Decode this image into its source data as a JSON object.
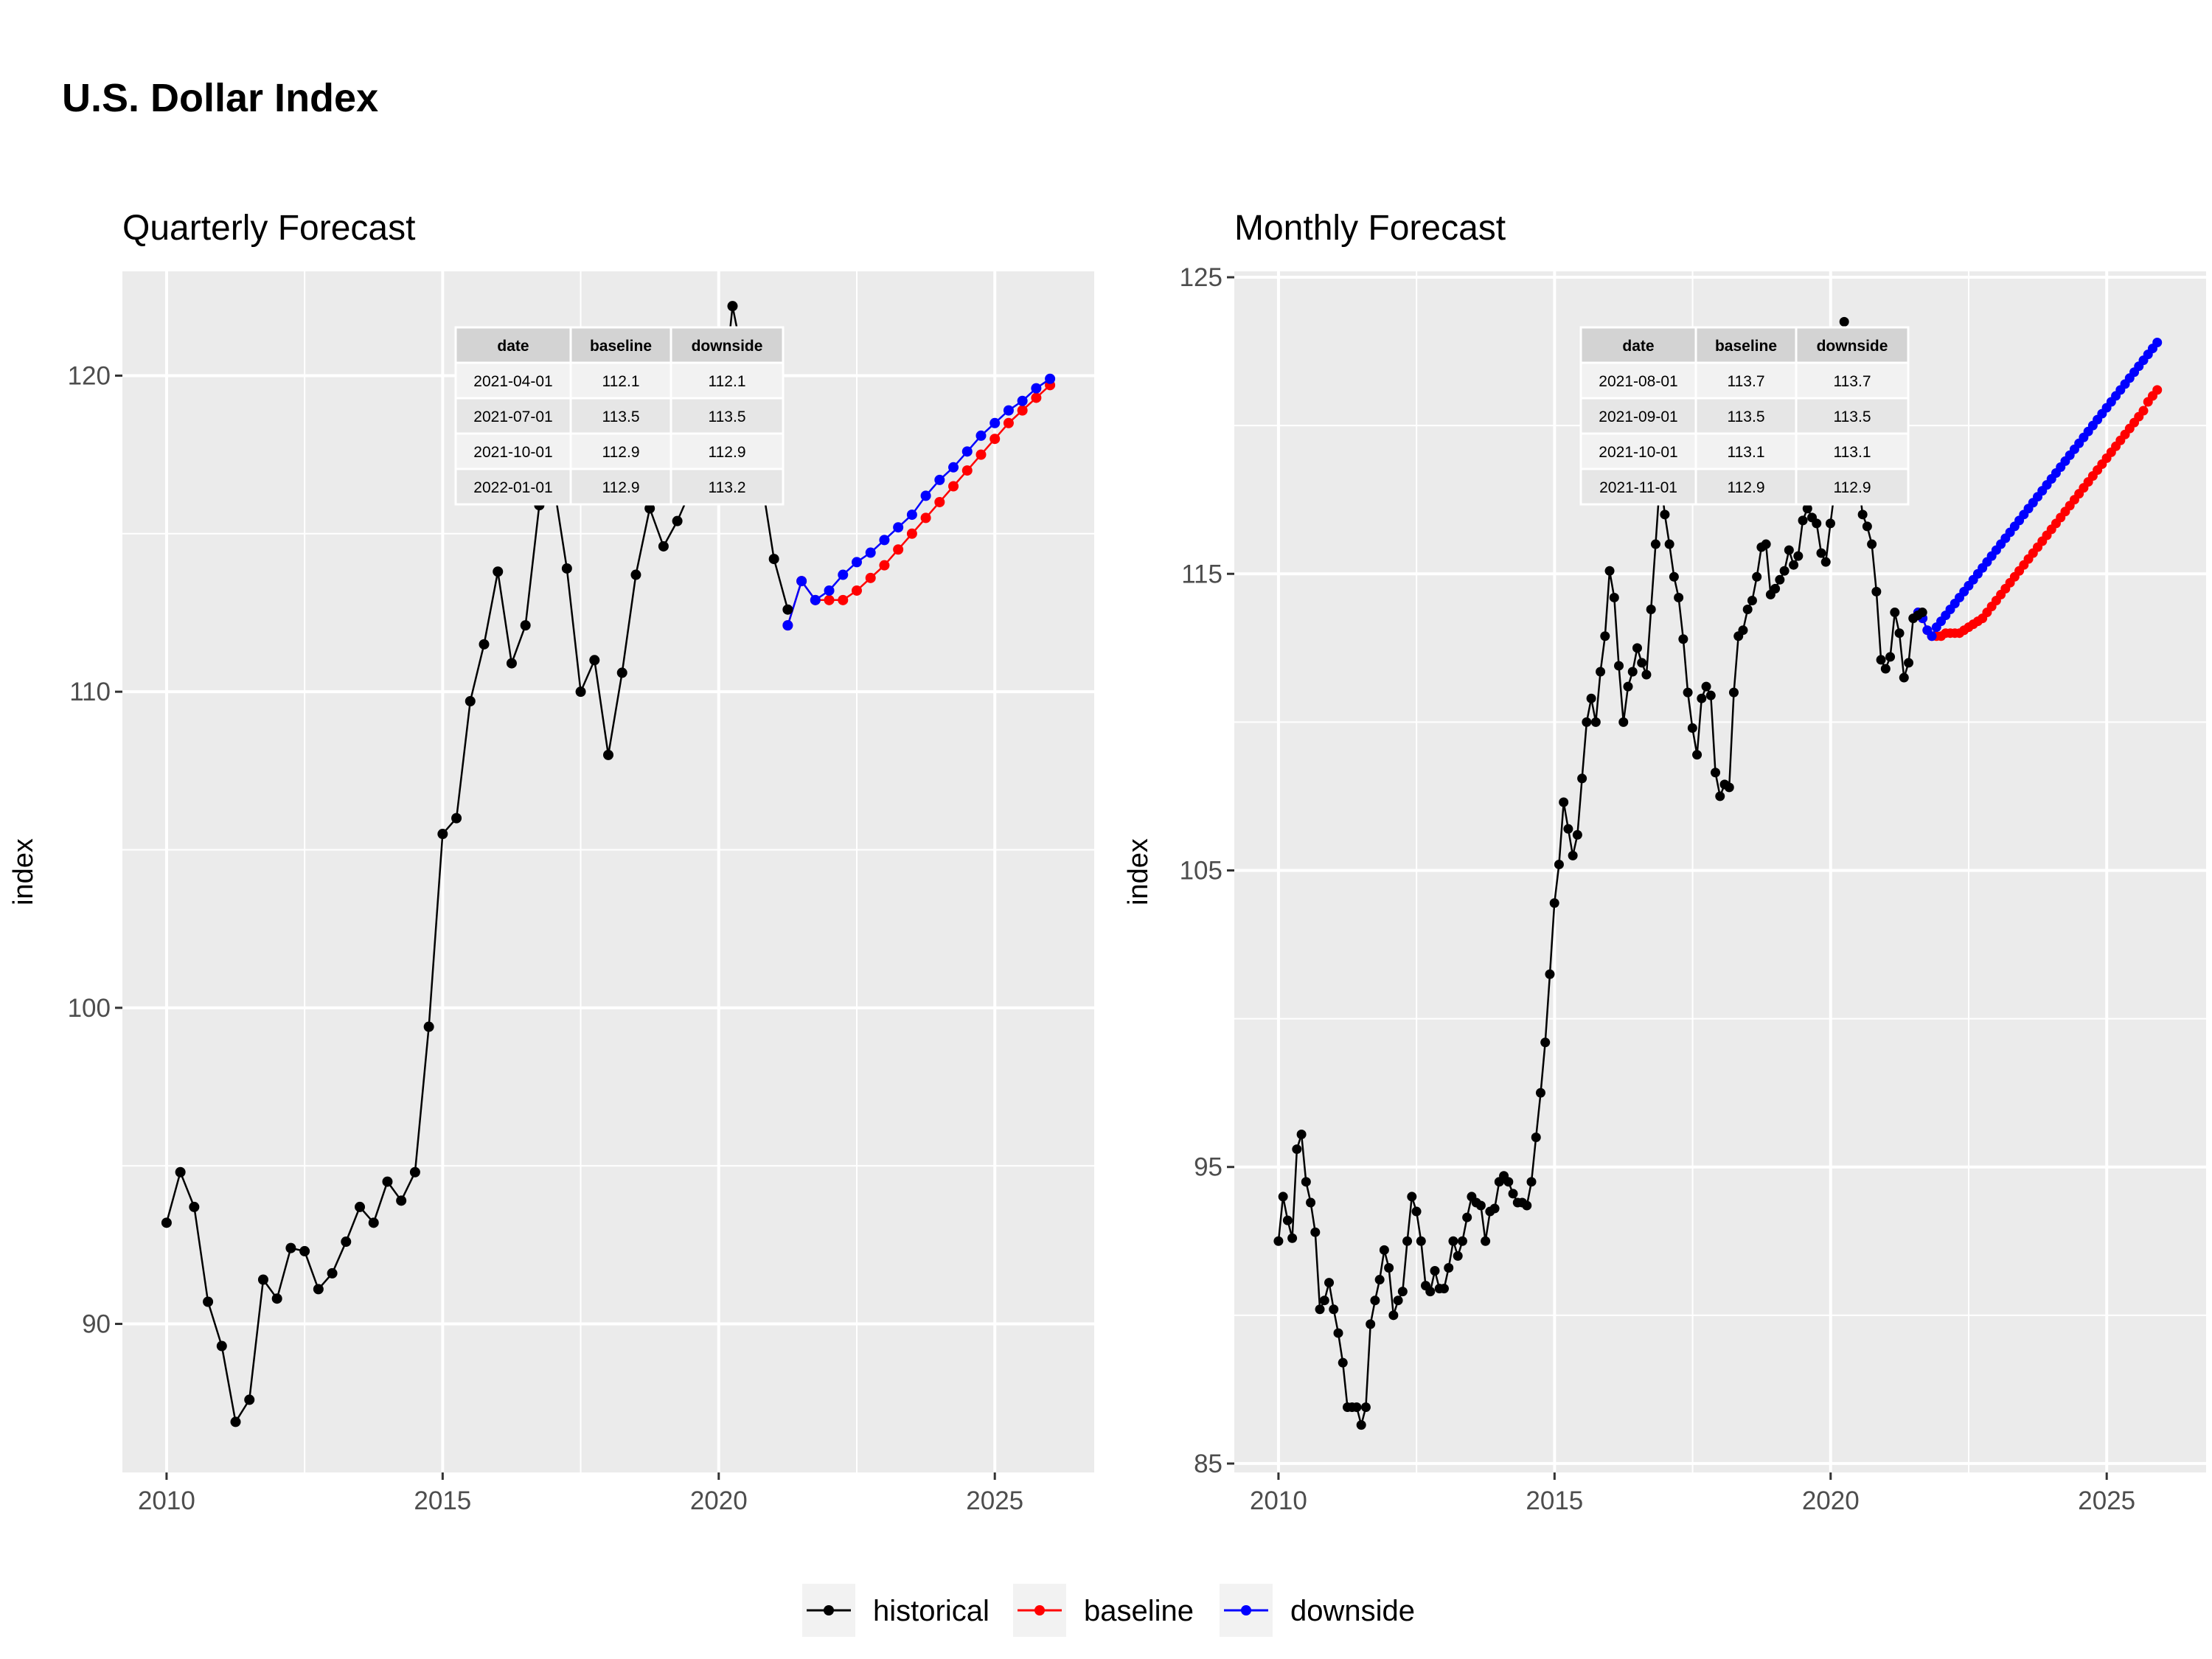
{
  "title": "U.S. Dollar Index",
  "colors": {
    "historical": "#000000",
    "baseline": "#ff0000",
    "downside": "#0000ff",
    "panel": "#ebebeb",
    "grid": "#ffffff"
  },
  "legend": [
    {
      "key": "historical",
      "label": "historical"
    },
    {
      "key": "baseline",
      "label": "baseline"
    },
    {
      "key": "downside",
      "label": "downside"
    }
  ],
  "chart_data": [
    {
      "type": "line",
      "title": "Quarterly Forecast",
      "xlabel": "",
      "ylabel": "index",
      "xlim": [
        2009.2,
        2026.8
      ],
      "ylim": [
        85.3,
        123.3
      ],
      "xticks": [
        2010,
        2015,
        2020,
        2025
      ],
      "yticks": [
        90,
        100,
        110,
        120
      ],
      "grid": true,
      "legend_position": "bottom",
      "series": [
        {
          "name": "historical",
          "x": [
            2010.0,
            2010.25,
            2010.5,
            2010.75,
            2011.0,
            2011.25,
            2011.5,
            2011.75,
            2012.0,
            2012.25,
            2012.5,
            2012.75,
            2013.0,
            2013.25,
            2013.5,
            2013.75,
            2014.0,
            2014.25,
            2014.5,
            2014.75,
            2015.0,
            2015.25,
            2015.5,
            2015.75,
            2016.0,
            2016.25,
            2016.5,
            2016.75,
            2017.0,
            2017.25,
            2017.5,
            2017.75,
            2018.0,
            2018.25,
            2018.5,
            2018.75,
            2019.0,
            2019.25,
            2019.5,
            2019.75,
            2020.0,
            2020.25,
            2020.5,
            2020.75,
            2021.0,
            2021.25
          ],
          "y": [
            93.2,
            94.8,
            93.7,
            90.7,
            89.3,
            86.9,
            87.6,
            91.4,
            90.8,
            92.4,
            92.3,
            91.1,
            91.6,
            92.6,
            93.7,
            93.2,
            94.5,
            93.9,
            94.8,
            99.4,
            105.5,
            106.0,
            109.7,
            111.5,
            113.8,
            110.9,
            112.1,
            115.9,
            116.7,
            113.9,
            110.0,
            111.0,
            108.0,
            110.6,
            113.7,
            115.8,
            114.6,
            115.4,
            116.4,
            116.5,
            118.0,
            122.2,
            120.0,
            117.0,
            114.2,
            112.6
          ]
        },
        {
          "name": "baseline",
          "x": [
            2021.25,
            2021.5,
            2021.75,
            2022.0,
            2022.25,
            2022.5,
            2022.75,
            2023.0,
            2023.25,
            2023.5,
            2023.75,
            2024.0,
            2024.25,
            2024.5,
            2024.75,
            2025.0,
            2025.25,
            2025.5,
            2025.75,
            2026.0
          ],
          "y": [
            112.1,
            113.5,
            112.9,
            112.9,
            112.9,
            113.2,
            113.6,
            114.0,
            114.5,
            115.0,
            115.5,
            116.0,
            116.5,
            117.0,
            117.5,
            118.0,
            118.5,
            118.9,
            119.3,
            119.7
          ]
        },
        {
          "name": "downside",
          "x": [
            2021.25,
            2021.5,
            2021.75,
            2022.0,
            2022.25,
            2022.5,
            2022.75,
            2023.0,
            2023.25,
            2023.5,
            2023.75,
            2024.0,
            2024.25,
            2024.5,
            2024.75,
            2025.0,
            2025.25,
            2025.5,
            2025.75,
            2026.0
          ],
          "y": [
            112.1,
            113.5,
            112.9,
            113.2,
            113.7,
            114.1,
            114.4,
            114.8,
            115.2,
            115.6,
            116.2,
            116.7,
            117.1,
            117.6,
            118.1,
            118.5,
            118.9,
            119.2,
            119.6,
            119.9
          ]
        }
      ],
      "table": {
        "columns": [
          "date",
          "baseline",
          "downside"
        ],
        "rows": [
          [
            "2021-04-01",
            "112.1",
            "112.1"
          ],
          [
            "2021-07-01",
            "113.5",
            "113.5"
          ],
          [
            "2021-10-01",
            "112.9",
            "112.9"
          ],
          [
            "2022-01-01",
            "112.9",
            "113.2"
          ]
        ]
      }
    },
    {
      "type": "line",
      "title": "Monthly Forecast",
      "xlabel": "",
      "ylabel": "index",
      "xlim": [
        2009.2,
        2026.8
      ],
      "ylim": [
        84.7,
        125.2
      ],
      "xticks": [
        2010,
        2015,
        2020,
        2025
      ],
      "yticks": [
        85,
        95,
        105,
        115,
        125
      ],
      "grid": true,
      "legend_position": "bottom",
      "series": [
        {
          "name": "historical",
          "x_start": 2010.0,
          "x_step": 0.0833,
          "y": [
            92.5,
            94.0,
            93.2,
            92.6,
            95.6,
            96.1,
            94.5,
            93.8,
            92.8,
            90.2,
            90.5,
            91.1,
            90.2,
            89.4,
            88.4,
            86.9,
            86.9,
            86.9,
            86.3,
            86.9,
            89.7,
            90.5,
            91.2,
            92.2,
            91.6,
            90.0,
            90.5,
            90.8,
            92.5,
            94.0,
            93.5,
            92.5,
            91.0,
            90.8,
            91.5,
            90.9,
            90.9,
            91.6,
            92.5,
            92.0,
            92.5,
            93.3,
            94.0,
            93.8,
            93.7,
            92.5,
            93.5,
            93.6,
            94.5,
            94.7,
            94.5,
            94.1,
            93.8,
            93.8,
            93.7,
            94.5,
            96.0,
            97.5,
            99.2,
            101.5,
            103.9,
            105.2,
            107.3,
            106.4,
            105.5,
            106.2,
            108.1,
            110.0,
            110.8,
            110.0,
            111.7,
            112.9,
            115.1,
            114.2,
            111.9,
            110.0,
            111.2,
            111.7,
            112.5,
            112.0,
            111.6,
            113.8,
            116.0,
            118.3,
            117.0,
            116.0,
            114.9,
            114.2,
            112.8,
            111.0,
            109.8,
            108.9,
            110.8,
            111.2,
            110.9,
            108.3,
            107.5,
            107.9,
            107.8,
            111.0,
            112.9,
            113.1,
            113.8,
            114.1,
            114.9,
            115.9,
            116.0,
            114.3,
            114.5,
            114.8,
            115.1,
            115.8,
            115.3,
            115.6,
            116.8,
            117.2,
            116.9,
            116.7,
            115.7,
            115.4,
            116.7,
            117.9,
            122.0,
            123.5,
            122.7,
            120.4,
            118.3,
            117.0,
            116.6,
            116.0,
            114.4,
            112.1,
            111.8,
            112.2,
            113.7,
            113.0,
            111.5,
            112.0,
            113.5,
            113.6,
            113.7
          ]
        },
        {
          "name": "baseline",
          "x_start": 2021.5833,
          "x_step": 0.0833,
          "y": [
            113.7,
            113.5,
            113.1,
            112.9,
            112.9,
            112.9,
            113.0,
            113.0,
            113.0,
            113.0,
            113.1,
            113.2,
            113.3,
            113.4,
            113.5,
            113.7,
            113.9,
            114.1,
            114.3,
            114.5,
            114.7,
            114.9,
            115.1,
            115.3,
            115.5,
            115.7,
            115.9,
            116.1,
            116.3,
            116.5,
            116.7,
            116.9,
            117.1,
            117.3,
            117.5,
            117.7,
            117.9,
            118.1,
            118.3,
            118.5,
            118.7,
            118.9,
            119.1,
            119.3,
            119.5,
            119.7,
            119.9,
            120.1,
            120.3,
            120.5,
            120.8,
            121.0,
            121.2
          ]
        },
        {
          "name": "downside",
          "x_start": 2021.5833,
          "x_step": 0.0833,
          "y": [
            113.7,
            113.5,
            113.1,
            112.9,
            113.2,
            113.4,
            113.6,
            113.8,
            114.0,
            114.2,
            114.4,
            114.6,
            114.8,
            115.0,
            115.2,
            115.4,
            115.6,
            115.8,
            116.0,
            116.2,
            116.4,
            116.6,
            116.8,
            117.0,
            117.2,
            117.4,
            117.6,
            117.8,
            118.0,
            118.2,
            118.4,
            118.6,
            118.8,
            119.0,
            119.2,
            119.4,
            119.6,
            119.8,
            120.0,
            120.2,
            120.4,
            120.6,
            120.8,
            121.0,
            121.2,
            121.4,
            121.6,
            121.8,
            122.0,
            122.2,
            122.4,
            122.6,
            122.8
          ]
        }
      ],
      "table": {
        "columns": [
          "date",
          "baseline",
          "downside"
        ],
        "rows": [
          [
            "2021-08-01",
            "113.7",
            "113.7"
          ],
          [
            "2021-09-01",
            "113.5",
            "113.5"
          ],
          [
            "2021-10-01",
            "113.1",
            "113.1"
          ],
          [
            "2021-11-01",
            "112.9",
            "112.9"
          ]
        ]
      }
    }
  ]
}
